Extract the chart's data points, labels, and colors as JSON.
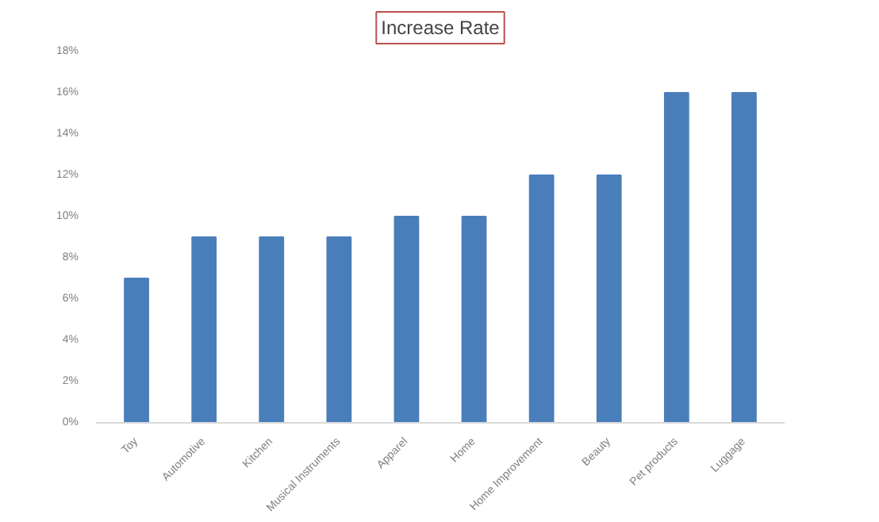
{
  "chart_data": {
    "type": "bar",
    "title": "Increase Rate",
    "categories": [
      "Toy",
      "Automotive",
      "Kitchen",
      "Musical Instruments",
      "Apparel",
      "Home",
      "Home Improvement",
      "Beauty",
      "Pet products",
      "Luggage"
    ],
    "values": [
      7,
      9,
      9,
      9,
      10,
      10,
      12,
      12,
      16,
      16
    ],
    "color": "#4a7ebb",
    "ylim": [
      0,
      18
    ],
    "yticks": [
      {
        "value": 0,
        "label": "0%"
      },
      {
        "value": 2,
        "label": "2%"
      },
      {
        "value": 4,
        "label": "4%"
      },
      {
        "value": 6,
        "label": "6%"
      },
      {
        "value": 8,
        "label": "8%"
      },
      {
        "value": 10,
        "label": "10%"
      },
      {
        "value": 12,
        "label": "12%"
      },
      {
        "value": 14,
        "label": "14%"
      },
      {
        "value": 16,
        "label": "16%"
      },
      {
        "value": 18,
        "label": "18%"
      }
    ],
    "grid": false
  }
}
